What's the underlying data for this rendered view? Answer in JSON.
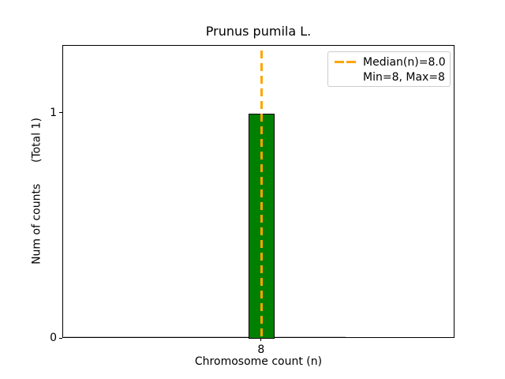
{
  "figure": {
    "title": "Prunus pumila L.",
    "xlabel": "Chromosome count (n)",
    "ylabel": "Num of counts      (Total 1)",
    "legend": {
      "median_label": "Median(n)=8.0",
      "minmax_label": "Min=8, Max=8"
    }
  },
  "chart_data": {
    "type": "bar",
    "title": "Prunus pumila L.",
    "xlabel": "Chromosome count (n)",
    "ylabel": "Num of counts      (Total 1)",
    "categories": [
      8
    ],
    "values": [
      1
    ],
    "bar_width": 0.5,
    "xlim": [
      4.2,
      11.7
    ],
    "ylim": [
      0,
      1.3
    ],
    "xticks": [
      8
    ],
    "yticks": [
      0,
      1
    ],
    "median": 8.0,
    "min": 8,
    "max": 8,
    "legend_entries": [
      "Median(n)=8.0",
      "Min=8, Max=8"
    ],
    "legend_position": "upper right",
    "grid": false,
    "colors": {
      "bar_fill": "#008000",
      "bar_edge": "#000000",
      "median_line": "#FFA500",
      "spine": "#000000",
      "legend_border": "#cccccc",
      "zero_bar_edge": "#c4c4c4"
    }
  }
}
